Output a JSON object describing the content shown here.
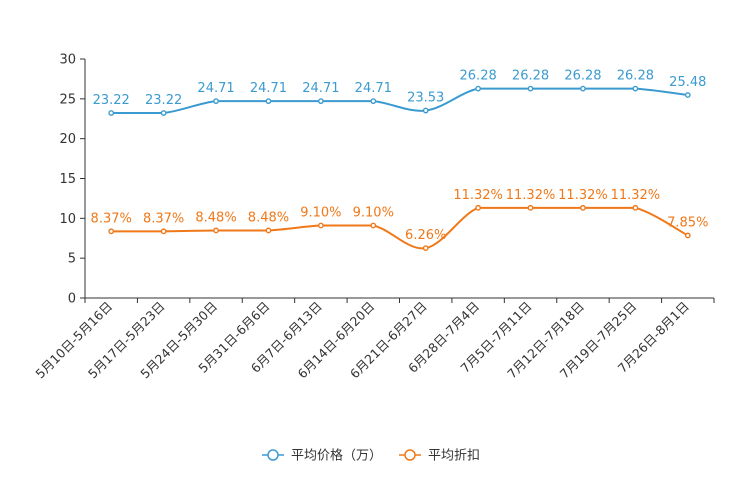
{
  "chart_data": {
    "type": "line",
    "categories": [
      "5月10日-5月16日",
      "5月17日-5月23日",
      "5月24日-5月30日",
      "5月31日-6月6日",
      "6月7日-6月13日",
      "6月14日-6月20日",
      "6月21日-6月27日",
      "6月28日-7月4日",
      "7月5日-7月11日",
      "7月12日-7月18日",
      "7月19日-7月25日",
      "7月26日-8月1日"
    ],
    "ylim": [
      0,
      30
    ],
    "yticks": [
      "0",
      "5",
      "10",
      "15",
      "20",
      "25",
      "30"
    ],
    "series": [
      {
        "name": "平均价格（万）",
        "color": "#3b9bd0",
        "values": [
          23.22,
          23.22,
          24.71,
          24.71,
          24.71,
          24.71,
          23.53,
          26.28,
          26.28,
          26.28,
          26.28,
          25.48
        ],
        "labels": [
          "23.22",
          "23.22",
          "24.71",
          "24.71",
          "24.71",
          "24.71",
          "23.53",
          "26.28",
          "26.28",
          "26.28",
          "26.28",
          "25.48"
        ]
      },
      {
        "name": "平均折扣",
        "color": "#f07818",
        "values": [
          8.37,
          8.37,
          8.48,
          8.48,
          9.1,
          9.1,
          6.26,
          11.32,
          11.32,
          11.32,
          11.32,
          7.85
        ],
        "labels": [
          "8.37%",
          "8.37%",
          "8.48%",
          "8.48%",
          "9.10%",
          "9.10%",
          "6.26%",
          "11.32%",
          "11.32%",
          "11.32%",
          "11.32%",
          "7.85%"
        ]
      }
    ]
  }
}
